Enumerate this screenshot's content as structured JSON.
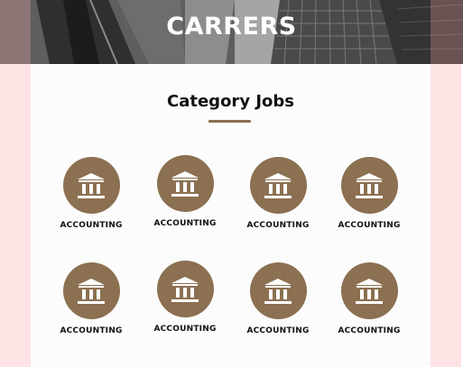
{
  "hero": {
    "title": "CARRERS"
  },
  "section": {
    "title": "Category Jobs"
  },
  "categories": [
    {
      "label": "ACCOUNTING",
      "icon": "bank-icon"
    },
    {
      "label": "ACCOUNTING",
      "icon": "bank-icon"
    },
    {
      "label": "ACCOUNTING",
      "icon": "bank-icon"
    },
    {
      "label": "ACCOUNTING",
      "icon": "bank-icon"
    },
    {
      "label": "ACCOUNTING",
      "icon": "bank-icon"
    },
    {
      "label": "ACCOUNTING",
      "icon": "bank-icon"
    },
    {
      "label": "ACCOUNTING",
      "icon": "bank-icon"
    },
    {
      "label": "ACCOUNTING",
      "icon": "bank-icon"
    }
  ],
  "colors": {
    "accent": "#8b7051",
    "side_panel": "#fde3e3",
    "content_bg": "#fcfcfc"
  }
}
